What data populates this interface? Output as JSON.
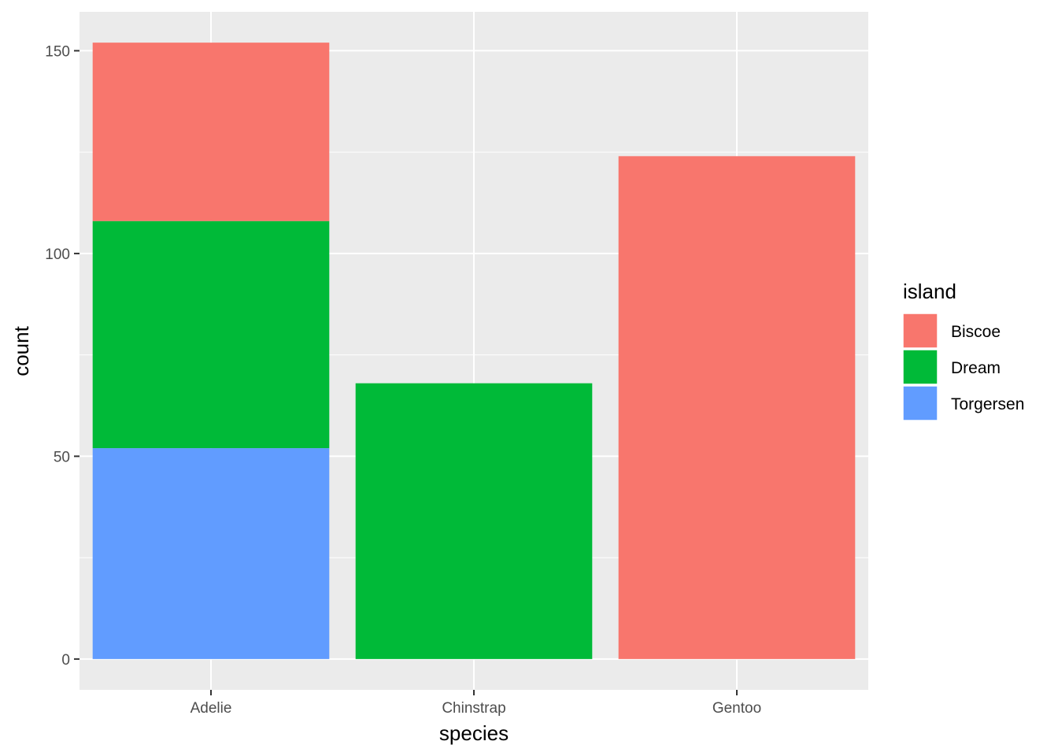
{
  "chart_data": {
    "type": "bar",
    "stacked": true,
    "title": "",
    "xlabel": "species",
    "ylabel": "count",
    "categories": [
      "Adelie",
      "Chinstrap",
      "Gentoo"
    ],
    "ylim": [
      -7.6,
      159.6
    ],
    "yticks": [
      0,
      50,
      100,
      150
    ],
    "grid": true,
    "legend": {
      "title": "island",
      "position": "right"
    },
    "series": [
      {
        "name": "Biscoe",
        "color": "#F8766D",
        "values": [
          44,
          0,
          124
        ]
      },
      {
        "name": "Dream",
        "color": "#00BA38",
        "values": [
          56,
          68,
          0
        ]
      },
      {
        "name": "Torgersen",
        "color": "#619CFF",
        "values": [
          52,
          0,
          0
        ]
      }
    ],
    "stack_order_bottom_to_top": [
      "Torgersen",
      "Dream",
      "Biscoe"
    ],
    "panel_background": "#EBEBEB",
    "grid_color": "#FFFFFF"
  }
}
